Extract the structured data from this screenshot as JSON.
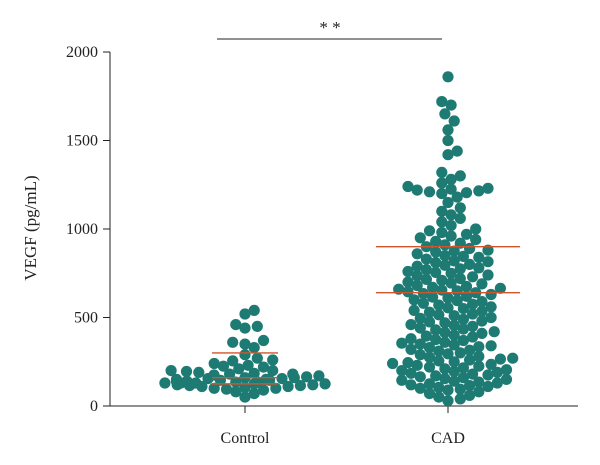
{
  "chart_data": {
    "type": "scatter",
    "subtype": "dot-plot",
    "title": "",
    "xlabel": "",
    "ylabel": "VEGF (pg/mL)",
    "ylim": [
      0,
      2000
    ],
    "yticks": [
      0,
      500,
      1000,
      1500,
      2000
    ],
    "categories": [
      "Control",
      "CAD"
    ],
    "grid": false,
    "point_color": "#1e7b73",
    "summary_line_color": "#d2542c",
    "significance": {
      "label": "* *",
      "between": [
        "Control",
        "CAD"
      ]
    },
    "groups": [
      {
        "category": "Control",
        "summary_lines": [
          300,
          160,
          125
        ],
        "values": [
          540,
          520,
          460,
          450,
          440,
          370,
          360,
          350,
          330,
          290,
          270,
          260,
          255,
          240,
          230,
          225,
          220,
          210,
          200,
          200,
          195,
          190,
          185,
          180,
          180,
          175,
          170,
          165,
          160,
          160,
          155,
          155,
          150,
          150,
          150,
          145,
          145,
          140,
          140,
          135,
          135,
          130,
          130,
          130,
          125,
          125,
          120,
          120,
          115,
          115,
          110,
          110,
          105,
          100,
          100,
          95,
          90,
          80,
          70,
          50
        ]
      },
      {
        "category": "CAD",
        "summary_lines": [
          900,
          640
        ],
        "values": [
          1860,
          1720,
          1700,
          1650,
          1610,
          1560,
          1500,
          1440,
          1420,
          1320,
          1300,
          1280,
          1260,
          1240,
          1230,
          1225,
          1220,
          1215,
          1210,
          1205,
          1200,
          1180,
          1150,
          1120,
          1100,
          1080,
          1060,
          1040,
          1020,
          1000,
          990,
          980,
          970,
          960,
          950,
          940,
          930,
          920,
          910,
          900,
          890,
          880,
          875,
          870,
          860,
          850,
          845,
          840,
          830,
          820,
          815,
          810,
          800,
          795,
          790,
          780,
          775,
          770,
          760,
          755,
          750,
          740,
          735,
          730,
          720,
          715,
          710,
          700,
          695,
          690,
          680,
          675,
          670,
          665,
          660,
          655,
          650,
          645,
          640,
          635,
          630,
          620,
          615,
          610,
          600,
          595,
          590,
          580,
          575,
          570,
          560,
          555,
          550,
          540,
          535,
          530,
          520,
          515,
          510,
          500,
          495,
          490,
          480,
          475,
          470,
          460,
          455,
          450,
          440,
          435,
          430,
          420,
          415,
          410,
          400,
          395,
          390,
          380,
          375,
          370,
          360,
          355,
          350,
          345,
          340,
          335,
          330,
          320,
          315,
          310,
          300,
          295,
          290,
          280,
          275,
          270,
          265,
          260,
          255,
          250,
          245,
          240,
          235,
          230,
          225,
          220,
          215,
          210,
          205,
          200,
          195,
          190,
          185,
          180,
          175,
          170,
          165,
          160,
          155,
          150,
          145,
          140,
          135,
          130,
          125,
          120,
          115,
          110,
          105,
          100,
          95,
          90,
          80,
          70,
          60,
          50,
          40,
          30
        ]
      }
    ]
  }
}
